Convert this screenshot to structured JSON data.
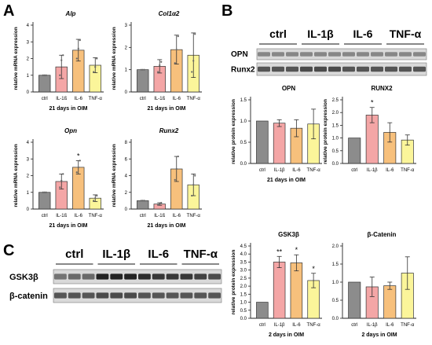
{
  "panel_letters": [
    "A",
    "B",
    "C"
  ],
  "blots": [
    {
      "id": "B",
      "headers": [
        "ctrl",
        "IL-1β",
        "IL-6",
        "TNF-α"
      ],
      "rows": [
        {
          "label": "OPN",
          "intensity": [
            0.45,
            0.45,
            0.45,
            0.45,
            0.45,
            0.45,
            0.45,
            0.45,
            0.45,
            0.45,
            0.45,
            0.45
          ]
        },
        {
          "label": "Runx2",
          "intensity": [
            0.7,
            0.7,
            0.7,
            0.75,
            0.75,
            0.75,
            0.7,
            0.7,
            0.7,
            0.7,
            0.7,
            0.7
          ]
        }
      ]
    },
    {
      "id": "C",
      "headers": [
        "ctrl",
        "IL-1β",
        "IL-6",
        "TNF-α"
      ],
      "rows": [
        {
          "label": "GSK3β",
          "intensity": [
            0.55,
            0.6,
            0.6,
            0.95,
            0.95,
            0.95,
            0.9,
            0.85,
            0.85,
            0.85,
            0.8,
            0.75
          ]
        },
        {
          "label": "β-catenin",
          "intensity": [
            0.7,
            0.7,
            0.7,
            0.75,
            0.75,
            0.75,
            0.7,
            0.7,
            0.7,
            0.7,
            0.7,
            0.7
          ]
        }
      ]
    }
  ],
  "chart_data": [
    {
      "panel": "A",
      "type": "bar",
      "title": "Alp",
      "title_italic": true,
      "xlabel": "21 days in OIM",
      "ylabel": "relative mRNA expression",
      "categories": [
        "ctrl",
        "IL-1ß",
        "IL-6",
        "TNF-α"
      ],
      "values": [
        1.0,
        1.5,
        2.5,
        1.6
      ],
      "errors": [
        0,
        0.7,
        0.65,
        0.45
      ],
      "ylim": [
        0,
        4
      ],
      "yticks": [
        0,
        1,
        2,
        3,
        4
      ],
      "significance": [
        "",
        "",
        "",
        ""
      ],
      "points": [
        [
          1,
          1,
          1
        ],
        [
          1.0,
          1.9,
          2.2
        ],
        [
          2.0,
          2.6,
          3.1
        ],
        [
          1.2,
          1.5,
          2.0
        ]
      ]
    },
    {
      "panel": "A",
      "type": "bar",
      "title": "Col1α2",
      "title_italic": true,
      "xlabel": "21 days in OIM",
      "ylabel": "relative mRNA expression",
      "categories": [
        "ctrl",
        "IL-1ß",
        "IL-6",
        "TNF-α"
      ],
      "values": [
        1.0,
        1.15,
        1.9,
        1.65
      ],
      "errors": [
        0,
        0.3,
        0.65,
        1.0
      ],
      "ylim": [
        0,
        3
      ],
      "yticks": [
        0,
        1,
        2,
        3
      ],
      "significance": [
        "",
        "",
        "",
        ""
      ],
      "points": [
        [
          1,
          1,
          1
        ],
        [
          0.9,
          1.2,
          1.35
        ],
        [
          1.3,
          1.9,
          2.5
        ],
        [
          0.9,
          1.4,
          2.6
        ]
      ]
    },
    {
      "panel": "A",
      "type": "bar",
      "title": "Opn",
      "title_italic": true,
      "xlabel": "21 days in OIM",
      "ylabel": "relative mRNA expression",
      "categories": [
        "ctrl",
        "IL-1ß",
        "IL-6",
        "TNF-α"
      ],
      "values": [
        1.0,
        1.65,
        2.5,
        0.65
      ],
      "errors": [
        0,
        0.45,
        0.4,
        0.2
      ],
      "ylim": [
        0,
        4
      ],
      "yticks": [
        0,
        1,
        2,
        3,
        4
      ],
      "significance": [
        "",
        "",
        "*",
        ""
      ],
      "points": [
        [
          1,
          1,
          1
        ],
        [
          1.3,
          1.7,
          2.1
        ],
        [
          2.2,
          2.5,
          2.9
        ],
        [
          0.5,
          0.65,
          0.8
        ]
      ]
    },
    {
      "panel": "A",
      "type": "bar",
      "title": "Runx2",
      "title_italic": true,
      "xlabel": "21 days in OIM",
      "ylabel": "relative mRNA expression",
      "categories": [
        "ctrl",
        "IL-1ß",
        "IL-6",
        "TNF-α"
      ],
      "values": [
        1.0,
        0.6,
        4.8,
        2.9
      ],
      "errors": [
        0,
        0.15,
        1.5,
        1.3
      ],
      "ylim": [
        0,
        8
      ],
      "yticks": [
        0,
        2,
        4,
        6,
        8
      ],
      "significance": [
        "",
        "",
        "",
        ""
      ],
      "points": [
        [
          1,
          1,
          1
        ],
        [
          0.5,
          0.6,
          0.75
        ],
        [
          3.5,
          4.8,
          6.3
        ],
        [
          1.6,
          2.9,
          4.0
        ]
      ]
    },
    {
      "panel": "B",
      "type": "bar",
      "title": "OPN",
      "title_italic": false,
      "xlabel": "21 days in OIM",
      "ylabel": "relative protein expression",
      "categories": [
        "ctrl",
        "IL-1β",
        "IL-6",
        "TNF-α"
      ],
      "values": [
        1.0,
        0.95,
        0.83,
        0.93
      ],
      "errors": [
        0,
        0.08,
        0.2,
        0.35
      ],
      "ylim": [
        0,
        1.5
      ],
      "yticks": [
        0.0,
        0.5,
        1.0,
        1.5
      ],
      "significance": [
        "",
        "",
        "",
        ""
      ],
      "points": []
    },
    {
      "panel": "B",
      "type": "bar",
      "title": "RUNX2",
      "title_italic": false,
      "xlabel": "",
      "ylabel": "relative protein expression",
      "categories": [
        "ctrl",
        "IL-1β",
        "IL-6",
        "TNF-α"
      ],
      "values": [
        1.0,
        1.9,
        1.22,
        0.92
      ],
      "errors": [
        0,
        0.3,
        0.38,
        0.2
      ],
      "ylim": [
        0,
        2.5
      ],
      "yticks": [
        0.0,
        0.5,
        1.0,
        1.5,
        2.0,
        2.5
      ],
      "significance": [
        "",
        "*",
        "",
        ""
      ],
      "points": []
    },
    {
      "panel": "C",
      "type": "bar",
      "title": "GSK3β",
      "title_italic": false,
      "xlabel": "2 days in OIM",
      "ylabel": "relative protein expression",
      "categories": [
        "ctrl",
        "IL-1β",
        "IL-6",
        "TNF-α"
      ],
      "values": [
        1.0,
        3.5,
        3.45,
        2.35
      ],
      "errors": [
        0,
        0.35,
        0.5,
        0.45
      ],
      "ylim": [
        0,
        4.5
      ],
      "yticks": [
        0.0,
        0.5,
        1.0,
        1.5,
        2.0,
        2.5,
        3.0,
        3.5,
        4.0,
        4.5
      ],
      "significance": [
        "",
        "**",
        "*",
        "*"
      ],
      "points": []
    },
    {
      "panel": "C",
      "type": "bar",
      "title": "β-Catenin",
      "title_italic": false,
      "xlabel": "2 days in OIM",
      "ylabel": "",
      "categories": [
        "ctrl",
        "IL-1β",
        "IL-6",
        "TNF-α"
      ],
      "values": [
        1.0,
        0.87,
        0.9,
        1.25
      ],
      "errors": [
        0,
        0.27,
        0.1,
        0.45
      ],
      "ylim": [
        0,
        2.0
      ],
      "yticks": [
        0.0,
        0.5,
        1.0,
        1.5,
        2.0
      ],
      "significance": [
        "",
        "",
        "",
        ""
      ],
      "points": []
    }
  ],
  "colors": {
    "ctrl": "#8c8c8c",
    "il1b": "#f4a6a6",
    "il6": "#f7c07c",
    "tnfa": "#fbf59a",
    "axis": "#222222"
  }
}
